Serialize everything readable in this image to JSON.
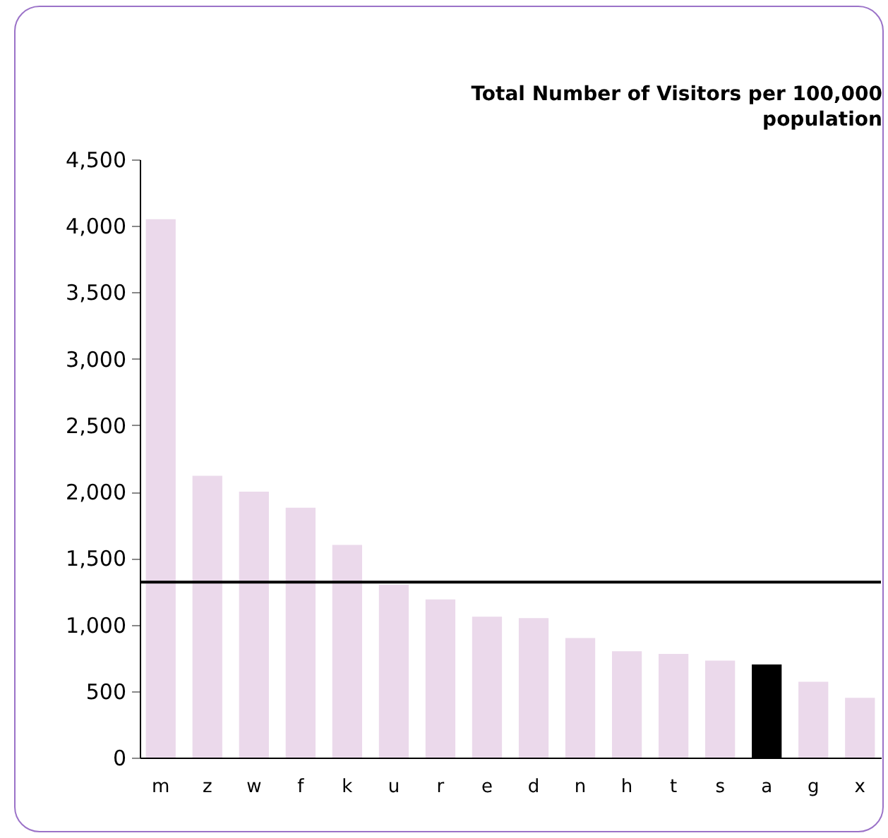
{
  "chart_data": {
    "type": "bar",
    "title": "Total Number of Visitors per 100,000 population",
    "categories": [
      "m",
      "z",
      "w",
      "f",
      "k",
      "u",
      "r",
      "e",
      "d",
      "n",
      "h",
      "t",
      "s",
      "a",
      "g",
      "x"
    ],
    "values": [
      4050,
      2120,
      2000,
      1880,
      1600,
      1300,
      1190,
      1060,
      1050,
      900,
      800,
      780,
      730,
      700,
      570,
      450
    ],
    "colors": [
      "#ebd9eb",
      "#ebd9eb",
      "#ebd9eb",
      "#ebd9eb",
      "#ebd9eb",
      "#ebd9eb",
      "#ebd9eb",
      "#ebd9eb",
      "#ebd9eb",
      "#ebd9eb",
      "#ebd9eb",
      "#ebd9eb",
      "#ebd9eb",
      "#000000",
      "#ebd9eb",
      "#ebd9eb"
    ],
    "ylim": [
      0,
      4500
    ],
    "yticks": [
      0,
      500,
      {
        "value": 1000,
        "label": "1,000"
      },
      {
        "value": 1500,
        "label": "1,500"
      },
      {
        "value": 2000,
        "label": "2,000"
      },
      {
        "value": 2500,
        "label": "2,500"
      },
      {
        "value": 3000,
        "label": "3,000"
      },
      {
        "value": 3500,
        "label": "3,500"
      },
      {
        "value": 4000,
        "label": "4,000"
      },
      {
        "value": 4500,
        "label": "4,500"
      }
    ],
    "ref_lines": [
      {
        "axis": "y",
        "value": 1320,
        "color": "#000000"
      }
    ],
    "grid": false,
    "legend": false
  }
}
